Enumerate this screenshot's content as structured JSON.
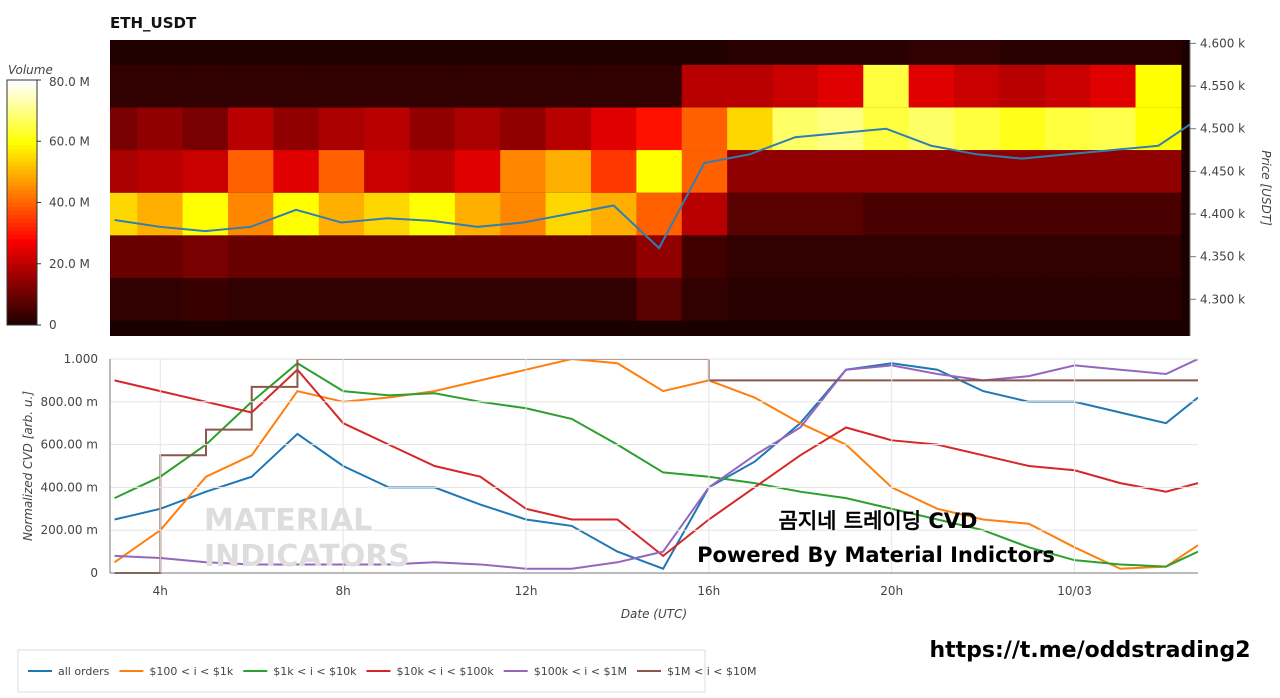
{
  "chart_data": [
    {
      "type": "heatmap",
      "title": "ETH_USDT",
      "y_label": "Price [USDT]",
      "x": [
        3,
        4,
        5,
        6,
        7,
        8,
        9,
        10,
        11,
        12,
        13,
        14,
        15,
        16,
        17,
        18,
        19,
        20,
        21,
        22,
        23,
        24,
        25,
        26
      ],
      "y": [
        4300,
        4350,
        4400,
        4450,
        4500,
        4550,
        4600
      ],
      "z": [
        [
          3,
          3,
          4,
          3,
          3,
          3,
          3,
          3,
          3,
          3,
          3,
          3,
          8,
          3,
          2,
          2,
          2,
          2,
          2,
          2,
          2,
          2,
          2,
          2
        ],
        [
          10,
          10,
          12,
          10,
          10,
          10,
          10,
          10,
          10,
          10,
          10,
          10,
          15,
          5,
          3,
          3,
          3,
          3,
          3,
          3,
          3,
          3,
          3,
          3
        ],
        [
          55,
          50,
          60,
          45,
          60,
          50,
          55,
          60,
          50,
          45,
          55,
          50,
          40,
          20,
          8,
          8,
          8,
          6,
          6,
          6,
          6,
          6,
          6,
          6
        ],
        [
          18,
          20,
          22,
          40,
          25,
          40,
          22,
          20,
          25,
          45,
          50,
          35,
          60,
          40,
          15,
          15,
          15,
          15,
          15,
          15,
          15,
          15,
          15,
          15
        ],
        [
          12,
          15,
          12,
          20,
          15,
          18,
          20,
          15,
          18,
          15,
          20,
          25,
          30,
          40,
          55,
          68,
          70,
          65,
          68,
          65,
          62,
          65,
          66,
          60
        ],
        [
          3,
          3,
          3,
          3,
          3,
          3,
          3,
          3,
          3,
          3,
          3,
          3,
          3,
          20,
          20,
          22,
          25,
          65,
          25,
          22,
          20,
          22,
          25,
          60
        ],
        [
          1,
          1,
          1,
          1,
          1,
          1,
          1,
          1,
          1,
          1,
          1,
          1,
          1,
          1,
          2,
          2,
          2,
          2,
          3,
          3,
          2,
          2,
          2,
          2
        ]
      ],
      "xlim": [
        2.9,
        26.7
      ],
      "ylim": [
        4257,
        4604
      ],
      "yticks": [
        {
          "value": 4300,
          "label": "4.300 k"
        },
        {
          "value": 4350,
          "label": "4.350 k"
        },
        {
          "value": 4400,
          "label": "4.400 k"
        },
        {
          "value": 4450,
          "label": "4.450 k"
        },
        {
          "value": 4500,
          "label": "4.500 k"
        },
        {
          "value": 4550,
          "label": "4.550 k"
        },
        {
          "value": 4600,
          "label": "4.600 k"
        }
      ],
      "colorbar": {
        "label": "Volume",
        "lim": [
          0,
          80
        ],
        "ticks": [
          0,
          {
            "value": 20,
            "label": "20.0 M"
          },
          {
            "value": 40,
            "label": "40.0 M"
          },
          {
            "value": 60,
            "label": "60.0 M"
          },
          {
            "value": 80,
            "label": "80.0 M"
          }
        ]
      },
      "price_line": {
        "color": "#2f7fb4",
        "x": [
          3,
          4,
          5,
          6,
          7,
          8,
          9,
          10,
          11,
          12,
          13,
          14,
          15,
          16,
          17,
          18,
          19,
          20,
          21,
          22,
          23,
          24,
          25,
          26,
          26.7
        ],
        "values": [
          4393,
          4385,
          4380,
          4385,
          4405,
          4390,
          4395,
          4392,
          4385,
          4390,
          4400,
          4410,
          4360,
          4460,
          4470,
          4490,
          4495,
          4500,
          4480,
          4470,
          4465,
          4470,
          4475,
          4480,
          4505
        ]
      }
    },
    {
      "type": "line",
      "x_label": "Date (UTC)",
      "y_label": "Normalized CVD [arb. u.]",
      "x": [
        3,
        4,
        5,
        6,
        7,
        8,
        9,
        10,
        11,
        12,
        13,
        14,
        15,
        16,
        17,
        18,
        19,
        20,
        21,
        22,
        23,
        24,
        25,
        26,
        26.7
      ],
      "xlim": [
        2.9,
        26.7
      ],
      "ylim": [
        0,
        1
      ],
      "xticks": [
        {
          "value": 4,
          "label": "4h"
        },
        {
          "value": 8,
          "label": "8h"
        },
        {
          "value": 12,
          "label": "12h"
        },
        {
          "value": 16,
          "label": "16h"
        },
        {
          "value": 20,
          "label": "20h"
        },
        {
          "value": 24,
          "label": "10/03"
        }
      ],
      "yticks": [
        0,
        {
          "value": 0.2,
          "label": "200.00 m"
        },
        {
          "value": 0.4,
          "label": "400.00 m"
        },
        {
          "value": 0.6,
          "label": "600.00 m"
        },
        {
          "value": 0.8,
          "label": "800.00 m"
        },
        {
          "value": 1,
          "label": "1.000"
        }
      ],
      "grid": true,
      "series": [
        {
          "name": "all orders",
          "color": "#1f77b4",
          "values": [
            0.25,
            0.3,
            0.38,
            0.45,
            0.65,
            0.5,
            0.4,
            0.4,
            0.32,
            0.25,
            0.22,
            0.1,
            0.02,
            0.4,
            0.52,
            0.7,
            0.95,
            0.98,
            0.95,
            0.85,
            0.8,
            0.8,
            0.75,
            0.7,
            0.82
          ]
        },
        {
          "name": "$100 < i < $1k",
          "color": "#ff7f0e",
          "values": [
            0.05,
            0.2,
            0.45,
            0.55,
            0.85,
            0.8,
            0.82,
            0.85,
            0.9,
            0.95,
            1.0,
            0.98,
            0.85,
            0.9,
            0.82,
            0.7,
            0.6,
            0.4,
            0.3,
            0.25,
            0.23,
            0.12,
            0.02,
            0.03,
            0.13
          ]
        },
        {
          "name": "$1k < i < $10k",
          "color": "#2ca02c",
          "values": [
            0.35,
            0.45,
            0.6,
            0.8,
            0.98,
            0.85,
            0.83,
            0.84,
            0.8,
            0.77,
            0.72,
            0.6,
            0.47,
            0.45,
            0.42,
            0.38,
            0.35,
            0.3,
            0.25,
            0.2,
            0.12,
            0.06,
            0.04,
            0.03,
            0.1
          ]
        },
        {
          "name": "$10k < i < $100k",
          "color": "#d62728",
          "values": [
            0.9,
            0.85,
            0.8,
            0.75,
            0.95,
            0.7,
            0.6,
            0.5,
            0.45,
            0.3,
            0.25,
            0.25,
            0.08,
            0.25,
            0.4,
            0.55,
            0.68,
            0.62,
            0.6,
            0.55,
            0.5,
            0.48,
            0.42,
            0.38,
            0.42
          ]
        },
        {
          "name": "$100k < i < $1M",
          "color": "#9467bd",
          "values": [
            0.08,
            0.07,
            0.05,
            0.04,
            0.04,
            0.04,
            0.04,
            0.05,
            0.04,
            0.02,
            0.02,
            0.05,
            0.1,
            0.4,
            0.55,
            0.68,
            0.95,
            0.97,
            0.93,
            0.9,
            0.92,
            0.97,
            0.95,
            0.93,
            1.0
          ]
        },
        {
          "name": "$1M < i < $10M",
          "color": "#8c564b",
          "values": [
            0,
            0.55,
            0.67,
            0.87,
            1.0,
            1.0,
            1.0,
            1.0,
            1.0,
            1.0,
            1.0,
            1.0,
            1.0,
            0.9,
            0.9,
            0.9,
            0.9,
            0.9,
            0.9,
            0.9,
            0.9,
            0.9,
            0.9,
            0.9,
            0.9
          ]
        }
      ],
      "watermark": [
        "MATERIAL",
        "INDICATORS"
      ],
      "annotations": [
        "곰지네 트레이딩 CVD",
        "Powered By Material Indictors"
      ]
    }
  ],
  "footer_link": "https://t.me/oddstrading2"
}
